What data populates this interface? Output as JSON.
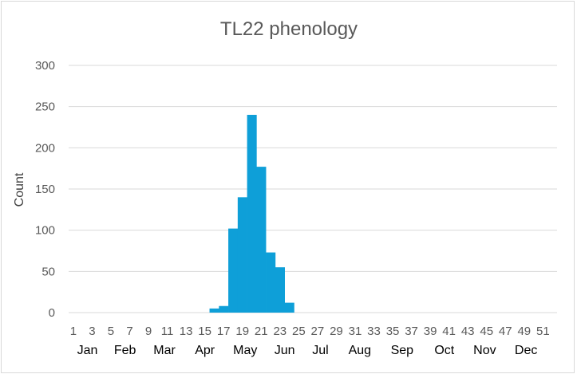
{
  "chart_data": {
    "type": "bar",
    "title": "TL22 phenology",
    "xlabel": "",
    "ylabel": "Count",
    "ylim": [
      0,
      300
    ],
    "yticks": [
      0,
      50,
      100,
      150,
      200,
      250,
      300
    ],
    "grid": true,
    "legend": "none",
    "bar_color": "#0E9FD8",
    "categories": [
      1,
      2,
      3,
      4,
      5,
      6,
      7,
      8,
      9,
      10,
      11,
      12,
      13,
      14,
      15,
      16,
      17,
      18,
      19,
      20,
      21,
      22,
      23,
      24,
      25,
      26,
      27,
      28,
      29,
      30,
      31,
      32,
      33,
      34,
      35,
      36,
      37,
      38,
      39,
      40,
      41,
      42,
      43,
      44,
      45,
      46,
      47,
      48,
      49,
      50,
      51,
      52
    ],
    "xtick_labels": [
      "1",
      "3",
      "5",
      "7",
      "9",
      "11",
      "13",
      "15",
      "17",
      "19",
      "21",
      "23",
      "25",
      "27",
      "29",
      "31",
      "33",
      "35",
      "37",
      "39",
      "41",
      "43",
      "45",
      "47",
      "49",
      "51"
    ],
    "values": [
      0,
      0,
      0,
      0,
      0,
      0,
      0,
      0,
      0,
      0,
      0,
      0,
      0,
      0,
      0,
      5,
      8,
      102,
      140,
      240,
      177,
      73,
      55,
      12,
      0,
      0,
      0,
      0,
      0,
      0,
      0,
      0,
      0,
      0,
      0,
      0,
      0,
      0,
      0,
      0,
      0,
      0,
      0,
      0,
      0,
      0,
      0,
      0,
      0,
      0,
      0,
      0
    ],
    "month_labels": [
      {
        "label": "Jan",
        "week": 2.5
      },
      {
        "label": "Feb",
        "week": 6.5
      },
      {
        "label": "Mar",
        "week": 10.7
      },
      {
        "label": "Apr",
        "week": 15
      },
      {
        "label": "May",
        "week": 19.3
      },
      {
        "label": "Jun",
        "week": 23.5
      },
      {
        "label": "Jul",
        "week": 27.3
      },
      {
        "label": "Aug",
        "week": 31.5
      },
      {
        "label": "Sep",
        "week": 36
      },
      {
        "label": "Oct",
        "week": 40.5
      },
      {
        "label": "Nov",
        "week": 44.8
      },
      {
        "label": "Dec",
        "week": 49.2
      }
    ]
  }
}
